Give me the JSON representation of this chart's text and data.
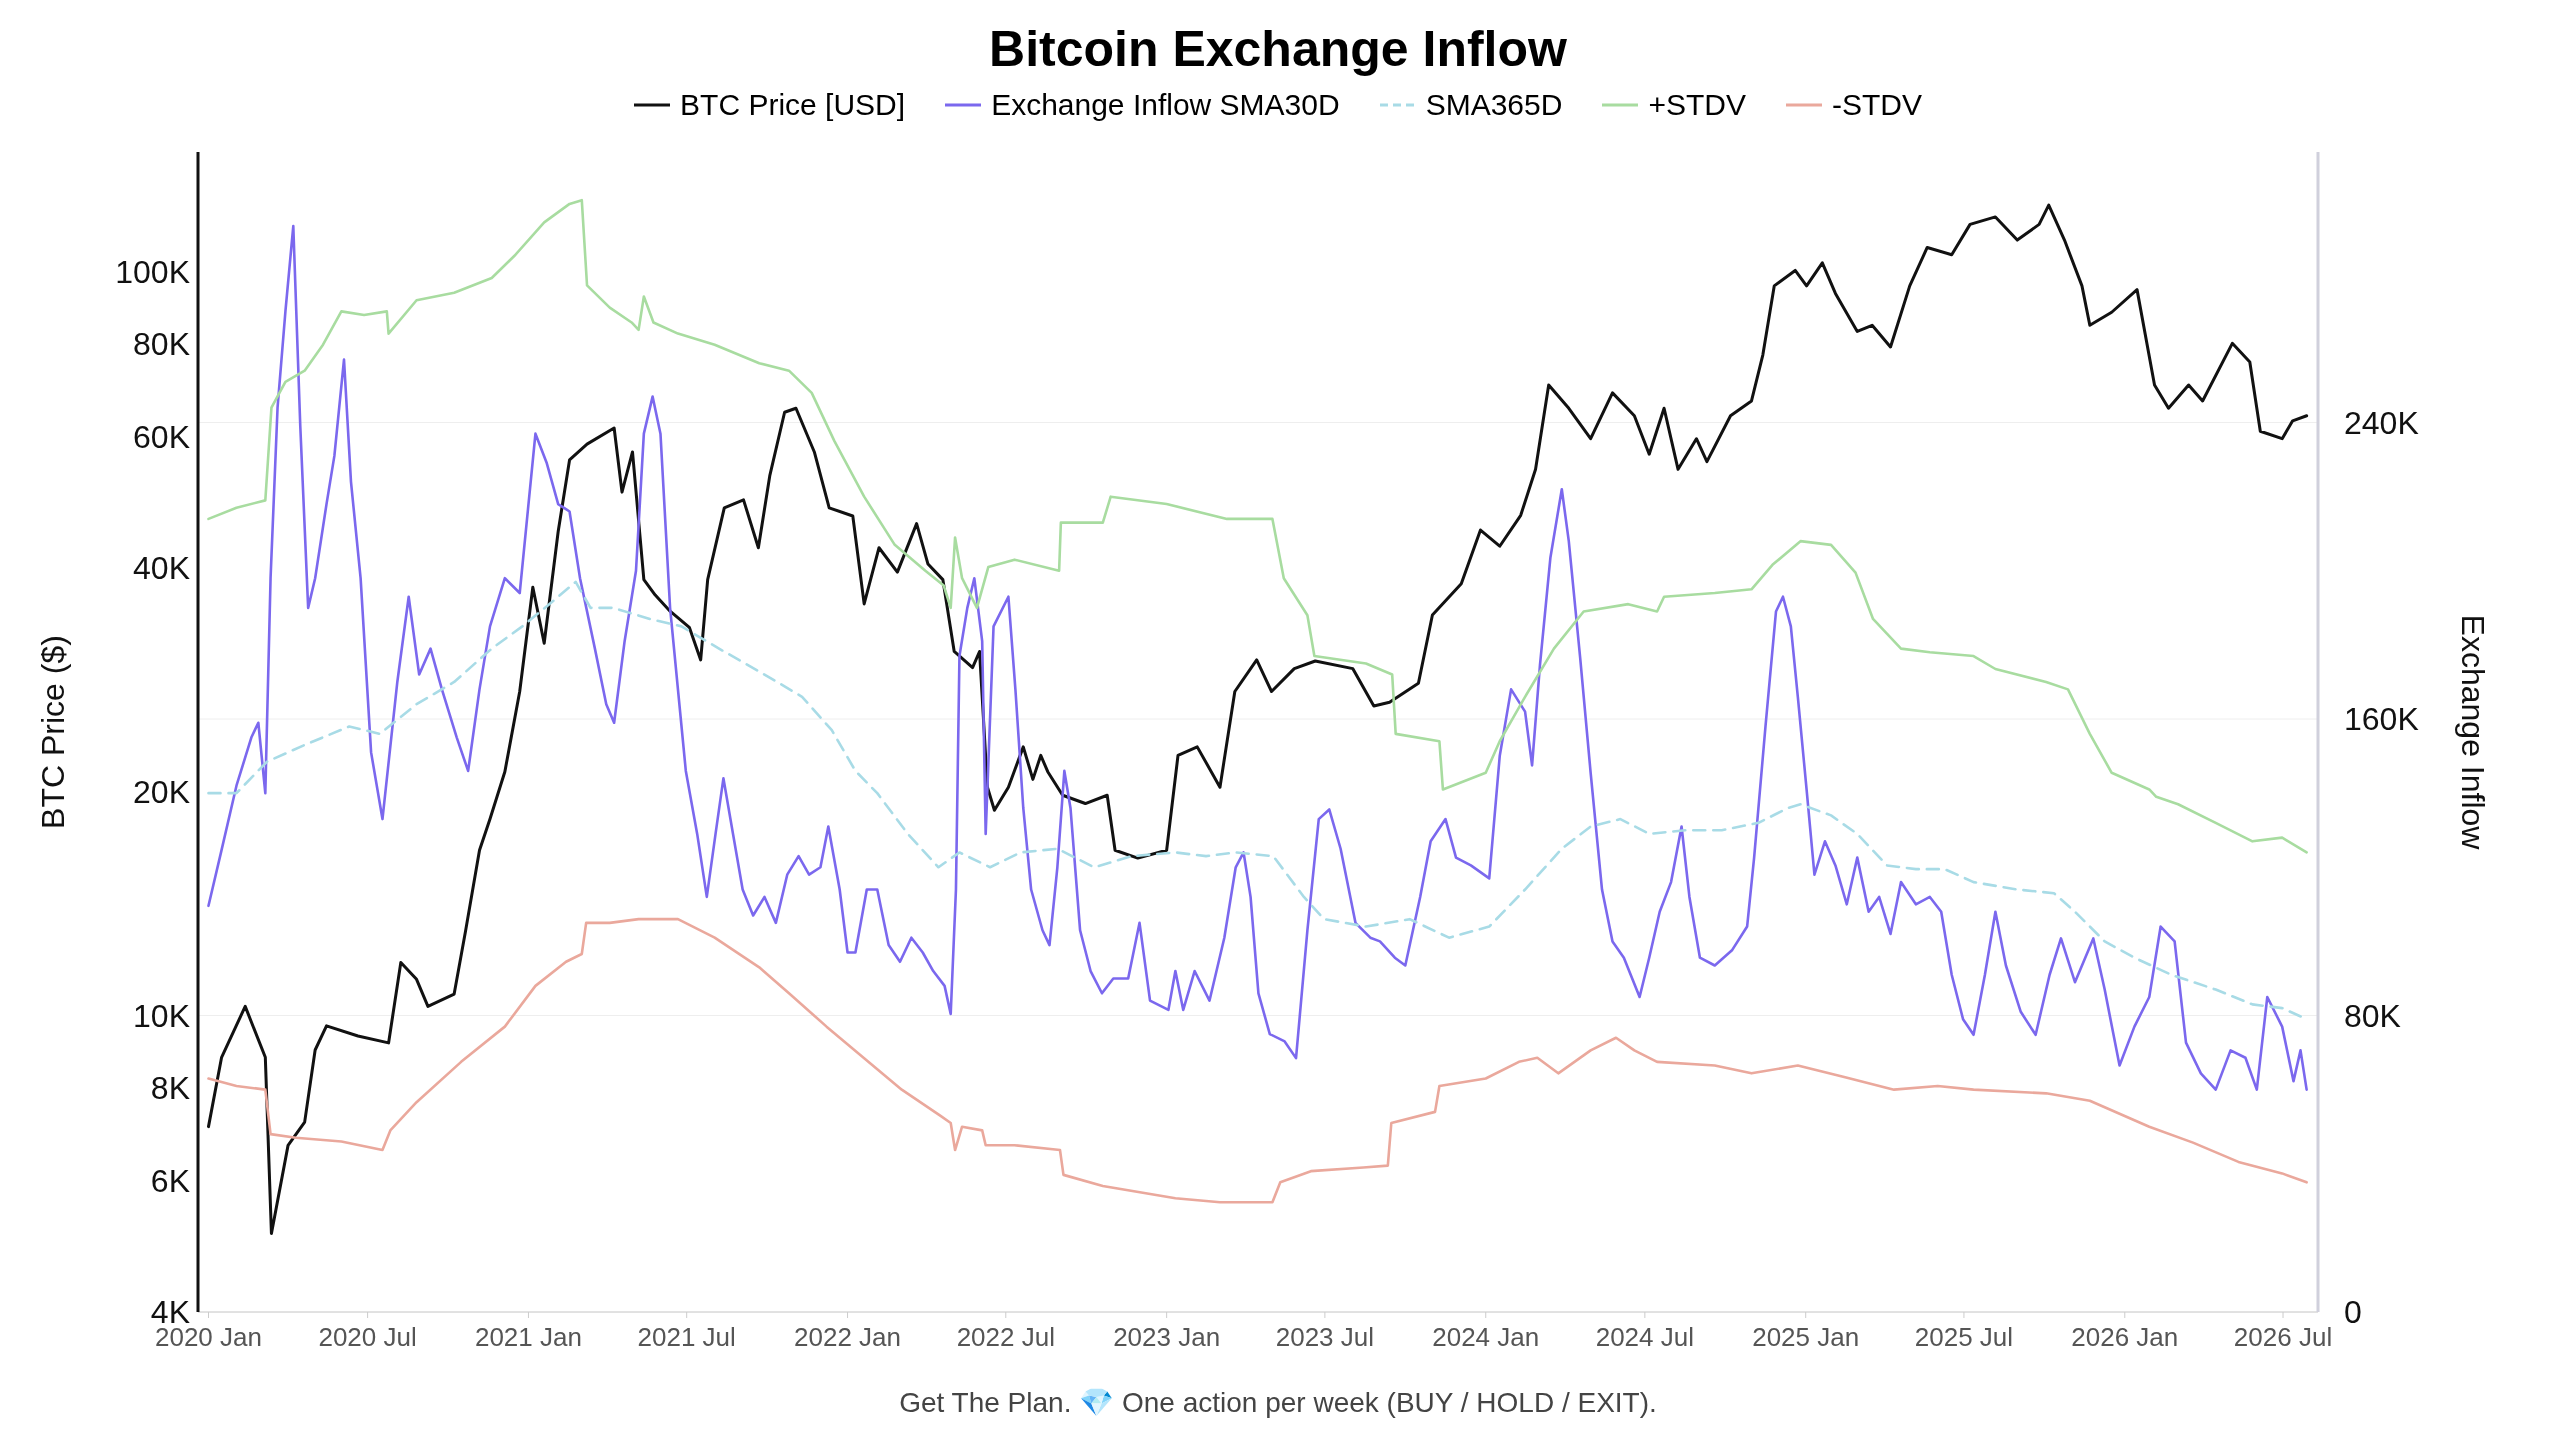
{
  "chart_data": {
    "type": "line",
    "title": "Bitcoin Exchange Inflow",
    "ylabel": "BTC Price ($)",
    "y2label": "Exchange Inflow",
    "legend": "top",
    "grid": "y",
    "log": "y",
    "xlim": [
      "2019-12-20",
      "2026-08-10"
    ],
    "xticks": [
      {
        "value": "2020-01-01",
        "label": "2020 Jan"
      },
      {
        "value": "2020-07-01",
        "label": "2020 Jul"
      },
      {
        "value": "2021-01-01",
        "label": "2021 Jan"
      },
      {
        "value": "2021-07-01",
        "label": "2021 Jul"
      },
      {
        "value": "2022-01-01",
        "label": "2022 Jan"
      },
      {
        "value": "2022-07-01",
        "label": "2022 Jul"
      },
      {
        "value": "2023-01-01",
        "label": "2023 Jan"
      },
      {
        "value": "2023-07-01",
        "label": "2023 Jul"
      },
      {
        "value": "2024-01-01",
        "label": "2024 Jan"
      },
      {
        "value": "2024-07-01",
        "label": "2024 Jul"
      },
      {
        "value": "2025-01-01",
        "label": "2025 Jan"
      },
      {
        "value": "2025-07-01",
        "label": "2025 Jul"
      },
      {
        "value": "2026-01-01",
        "label": "2026 Jan"
      },
      {
        "value": "2026-07-01",
        "label": "2026 Jul"
      }
    ],
    "ylim": [
      4000,
      145000
    ],
    "yticks": [
      {
        "value": 4000,
        "label": "4K"
      },
      {
        "value": 6000,
        "label": "6K"
      },
      {
        "value": 8000,
        "label": "8K"
      },
      {
        "value": 10000,
        "label": "10K"
      },
      {
        "value": 20000,
        "label": "20K"
      },
      {
        "value": 40000,
        "label": "40K"
      },
      {
        "value": 60000,
        "label": "60K"
      },
      {
        "value": 80000,
        "label": "80K"
      },
      {
        "value": 100000,
        "label": "100K"
      }
    ],
    "y2lim": [
      0,
      313000
    ],
    "y2ticks": [
      0,
      {
        "value": 80000,
        "label": "80K"
      },
      {
        "value": 160000,
        "label": "160K"
      },
      {
        "value": 240000,
        "label": "240K"
      }
    ],
    "annotations": [
      "Get The Plan. 💎 One action per week (BUY / HOLD / EXIT)."
    ],
    "series": [
      {
        "name": "BTC Price [USD]",
        "color": "#111111",
        "line_style": "solid",
        "x": [
          "2020-01-01",
          "2020-01-16",
          "2020-02-12",
          "2020-03-06",
          "2020-03-13",
          "2020-04-01",
          "2020-04-20",
          "2020-05-02",
          "2020-05-15",
          "2020-06-20",
          "2020-07-25",
          "2020-08-08",
          "2020-08-26",
          "2020-09-08",
          "2020-10-08",
          "2020-10-21",
          "2020-11-06",
          "2020-11-18",
          "2020-12-05",
          "2020-12-22",
          "2021-01-06",
          "2021-01-19",
          "2021-02-04",
          "2021-02-17",
          "2021-03-09",
          "2021-04-09",
          "2021-04-18",
          "2021-04-30",
          "2021-05-13",
          "2021-05-26",
          "2021-06-12",
          "2021-07-04",
          "2021-07-17",
          "2021-07-25",
          "2021-08-13",
          "2021-09-04",
          "2021-09-21",
          "2021-10-04",
          "2021-10-21",
          "2021-11-03",
          "2021-11-24",
          "2021-12-11",
          "2022-01-07",
          "2022-01-20",
          "2022-02-06",
          "2022-02-27",
          "2022-03-21",
          "2022-04-03",
          "2022-04-20",
          "2022-05-03",
          "2022-05-24",
          "2022-06-01",
          "2022-06-10",
          "2022-06-18",
          "2022-07-04",
          "2022-07-21",
          "2022-08-01",
          "2022-08-10",
          "2022-08-18",
          "2022-09-04",
          "2022-09-30",
          "2022-10-25",
          "2022-11-03",
          "2022-11-29",
          "2023-01-01",
          "2023-01-14",
          "2023-02-05",
          "2023-03-03",
          "2023-03-20",
          "2023-04-14",
          "2023-05-01",
          "2023-05-27",
          "2023-06-20",
          "2023-08-02",
          "2023-08-26",
          "2023-09-13",
          "2023-10-16",
          "2023-11-01",
          "2023-12-04",
          "2023-12-26",
          "2024-01-17",
          "2024-02-10",
          "2024-02-27",
          "2024-03-13",
          "2024-04-05",
          "2024-04-30",
          "2024-05-25",
          "2024-06-19",
          "2024-07-06",
          "2024-07-23",
          "2024-08-08",
          "2024-08-29",
          "2024-09-10",
          "2024-10-07",
          "2024-10-31",
          "2024-11-13",
          "2024-11-26",
          "2024-12-20",
          "2025-01-02",
          "2025-01-20",
          "2025-02-04",
          "2025-03-01",
          "2025-03-18",
          "2025-04-08",
          "2025-04-30",
          "2025-05-20",
          "2025-06-17",
          "2025-07-08",
          "2025-08-06",
          "2025-08-31",
          "2025-09-25",
          "2025-10-06",
          "2025-10-24",
          "2025-11-13",
          "2025-11-22",
          "2025-12-17",
          "2026-01-15",
          "2026-02-04",
          "2026-02-20",
          "2026-03-15",
          "2026-03-31",
          "2026-05-04",
          "2026-05-24",
          "2026-06-05",
          "2026-06-30",
          "2026-07-12",
          "2026-07-28"
        ],
        "values": [
          7100,
          8800,
          10300,
          8800,
          5100,
          6700,
          7200,
          9000,
          9700,
          9400,
          9200,
          11800,
          11200,
          10300,
          10700,
          13000,
          16700,
          18400,
          21300,
          27300,
          37700,
          31700,
          44800,
          55900,
          58700,
          61700,
          50600,
          57300,
          38600,
          36800,
          35000,
          33300,
          30100,
          38600,
          48200,
          49400,
          42600,
          53200,
          64800,
          65600,
          57300,
          48200,
          47000,
          35800,
          42600,
          39500,
          45900,
          40500,
          38600,
          30900,
          29400,
          30900,
          20300,
          18900,
          20300,
          23000,
          20800,
          22400,
          21300,
          19800,
          19300,
          19800,
          16700,
          16300,
          16700,
          22400,
          23000,
          20300,
          27300,
          30100,
          27300,
          29300,
          30000,
          29300,
          26100,
          26400,
          28000,
          34600,
          38100,
          45000,
          42800,
          47100,
          54300,
          70500,
          65600,
          59700,
          68800,
          64100,
          56900,
          65600,
          54300,
          59700,
          55600,
          64100,
          67100,
          77400,
          95800,
          100500,
          95800,
          102900,
          93600,
          83200,
          84800,
          79300,
          95800,
          107900,
          105500,
          115900,
          118600,
          110400,
          115900,
          123000,
          110400,
          95800,
          84800,
          88300,
          94700,
          70500,
          65600,
          70500,
          67100,
          80200,
          75700,
          61100,
          59700,
          63100,
          64100
        ]
      },
      {
        "name": "Exchange Inflow SMA30D",
        "color": "#7b68ee",
        "line_style": "solid",
        "axis": "y2",
        "x": [
          "2020-01-01",
          "2020-01-16",
          "2020-02-02",
          "2020-02-19",
          "2020-02-27",
          "2020-03-06",
          "2020-03-12",
          "2020-03-20",
          "2020-03-29",
          "2020-04-07",
          "2020-04-15",
          "2020-04-24",
          "2020-05-02",
          "2020-05-15",
          "2020-05-24",
          "2020-06-04",
          "2020-06-12",
          "2020-06-23",
          "2020-07-05",
          "2020-07-18",
          "2020-08-04",
          "2020-08-17",
          "2020-08-29",
          "2020-09-11",
          "2020-09-24",
          "2020-10-11",
          "2020-10-24",
          "2020-11-06",
          "2020-11-18",
          "2020-12-05",
          "2020-12-22",
          "2021-01-09",
          "2021-01-22",
          "2021-02-04",
          "2021-02-17",
          "2021-03-01",
          "2021-03-18",
          "2021-03-31",
          "2021-04-09",
          "2021-04-21",
          "2021-05-04",
          "2021-05-13",
          "2021-05-23",
          "2021-06-01",
          "2021-06-12",
          "2021-06-30",
          "2021-07-13",
          "2021-07-24",
          "2021-08-03",
          "2021-08-12",
          "2021-08-23",
          "2021-09-03",
          "2021-09-15",
          "2021-09-28",
          "2021-10-11",
          "2021-10-24",
          "2021-11-06",
          "2021-11-18",
          "2021-12-01",
          "2021-12-10",
          "2021-12-23",
          "2022-01-01",
          "2022-01-10",
          "2022-01-23",
          "2022-02-04",
          "2022-02-17",
          "2022-03-02",
          "2022-03-15",
          "2022-03-28",
          "2022-04-09",
          "2022-04-22",
          "2022-04-29",
          "2022-05-05",
          "2022-05-09",
          "2022-05-18",
          "2022-05-26",
          "2022-06-04",
          "2022-06-08",
          "2022-06-17",
          "2022-07-04",
          "2022-07-12",
          "2022-07-21",
          "2022-07-30",
          "2022-08-12",
          "2022-08-20",
          "2022-08-29",
          "2022-09-06",
          "2022-09-13",
          "2022-09-24",
          "2022-10-06",
          "2022-10-19",
          "2022-11-01",
          "2022-11-18",
          "2022-12-01",
          "2022-12-13",
          "2023-01-03",
          "2023-01-11",
          "2023-01-20",
          "2023-02-02",
          "2023-02-19",
          "2023-03-08",
          "2023-03-21",
          "2023-03-30",
          "2023-04-07",
          "2023-04-16",
          "2023-04-29",
          "2023-05-16",
          "2023-05-29",
          "2023-06-11",
          "2023-06-24",
          "2023-07-06",
          "2023-07-19",
          "2023-08-05",
          "2023-08-22",
          "2023-09-02",
          "2023-09-19",
          "2023-10-01",
          "2023-10-18",
          "2023-10-30",
          "2023-11-16",
          "2023-11-28",
          "2023-12-15",
          "2024-01-05",
          "2024-01-17",
          "2024-01-30",
          "2024-02-15",
          "2024-02-23",
          "2024-03-03",
          "2024-03-15",
          "2024-03-28",
          "2024-04-05",
          "2024-04-18",
          "2024-04-30",
          "2024-05-13",
          "2024-05-25",
          "2024-06-07",
          "2024-06-25",
          "2024-07-06",
          "2024-07-18",
          "2024-07-31",
          "2024-08-12",
          "2024-08-21",
          "2024-09-02",
          "2024-09-19",
          "2024-10-09",
          "2024-10-26",
          "2024-11-03",
          "2024-11-16",
          "2024-11-28",
          "2024-12-06",
          "2024-12-15",
          "2024-12-23",
          "2025-01-02",
          "2025-01-11",
          "2025-01-23",
          "2025-02-04",
          "2025-02-17",
          "2025-03-01",
          "2025-03-14",
          "2025-03-26",
          "2025-04-08",
          "2025-04-20",
          "2025-05-07",
          "2025-05-23",
          "2025-06-05",
          "2025-06-17",
          "2025-06-30",
          "2025-07-12",
          "2025-07-25",
          "2025-08-06",
          "2025-08-18",
          "2025-09-04",
          "2025-09-21",
          "2025-10-07",
          "2025-10-20",
          "2025-11-05",
          "2025-11-26",
          "2025-12-09",
          "2025-12-26",
          "2026-01-12",
          "2026-01-29",
          "2026-02-11",
          "2026-02-27",
          "2026-03-12",
          "2026-03-29",
          "2026-04-15",
          "2026-05-02",
          "2026-05-19",
          "2026-06-01",
          "2026-06-13",
          "2026-06-30",
          "2026-07-13",
          "2026-07-21",
          "2026-07-28"
        ],
        "values": [
          109600,
          124700,
          142000,
          155000,
          159000,
          140000,
          198000,
          244000,
          270000,
          293000,
          239000,
          190000,
          198000,
          218000,
          231000,
          257000,
          224000,
          198000,
          151000,
          133000,
          170000,
          193000,
          172000,
          179000,
          168000,
          155000,
          146000,
          168000,
          185000,
          198000,
          194000,
          237000,
          229000,
          218000,
          216000,
          198000,
          179000,
          164000,
          159000,
          181000,
          200000,
          237000,
          247000,
          237000,
          190000,
          146000,
          129000,
          112000,
          129000,
          144000,
          129000,
          114000,
          107000,
          112000,
          105000,
          118000,
          123000,
          118000,
          120000,
          131000,
          114000,
          97000,
          97000,
          114000,
          114000,
          99000,
          94500,
          101000,
          97000,
          92000,
          88000,
          80400,
          114000,
          177000,
          190000,
          198000,
          181000,
          129000,
          185000,
          193000,
          168000,
          136000,
          114000,
          103000,
          99000,
          120000,
          146000,
          136000,
          103000,
          92000,
          86000,
          90000,
          90000,
          105000,
          84000,
          81500,
          92000,
          81500,
          92000,
          84000,
          101000,
          120000,
          124000,
          112000,
          86000,
          75000,
          73000,
          68500,
          103000,
          133000,
          135600,
          125000,
          105000,
          101000,
          100000,
          95600,
          93500,
          112000,
          127000,
          133000,
          122600,
          120500,
          117000,
          150000,
          168000,
          162000,
          147500,
          174500,
          203600,
          222000,
          208000,
          176600,
          145500,
          114000,
          100000,
          95600,
          85000,
          95600,
          108000,
          116000,
          131000,
          112000,
          95600,
          93500,
          97700,
          104000,
          122600,
          158000,
          189000,
          193000,
          185000,
          166000,
          141000,
          118000,
          127000,
          120500,
          110000,
          122600,
          108000,
          112000,
          102000,
          116000,
          110000,
          112000,
          108000,
          91000,
          79000,
          74800,
          91000,
          108000,
          93500,
          81000,
          74800,
          91000,
          100800,
          89000,
          100800,
          87000,
          66500,
          77000,
          85000,
          104000,
          100000,
          72700,
          64400,
          60000,
          70600,
          68600,
          60000,
          85000,
          77000,
          62300,
          70600,
          60000
        ]
      },
      {
        "name": "SMA365D",
        "color": "#a8dbe6",
        "line_style": "dashed",
        "axis": "y2",
        "x": [
          "2020-01-01",
          "2020-02-02",
          "2020-03-08",
          "2020-04-20",
          "2020-06-10",
          "2020-07-15",
          "2020-08-26",
          "2020-10-08",
          "2020-11-20",
          "2020-12-25",
          "2021-01-30",
          "2021-02-24",
          "2021-03-13",
          "2021-04-08",
          "2021-05-20",
          "2021-06-25",
          "2021-08-07",
          "2021-09-28",
          "2021-11-10",
          "2021-12-14",
          "2022-01-10",
          "2022-02-04",
          "2022-03-11",
          "2022-04-15",
          "2022-05-09",
          "2022-06-13",
          "2022-07-18",
          "2022-08-29",
          "2022-10-10",
          "2022-11-22",
          "2023-01-11",
          "2023-02-15",
          "2023-03-21",
          "2023-05-03",
          "2023-06-07",
          "2023-06-30",
          "2023-08-17",
          "2023-10-06",
          "2023-11-20",
          "2024-01-05",
          "2024-02-15",
          "2024-03-28",
          "2024-04-30",
          "2024-06-03",
          "2024-07-06",
          "2024-08-16",
          "2024-09-27",
          "2024-11-08",
          "2024-12-12",
          "2024-12-26",
          "2025-01-30",
          "2025-03-01",
          "2025-04-04",
          "2025-05-07",
          "2025-06-09",
          "2025-07-12",
          "2025-08-31",
          "2025-10-12",
          "2025-11-05",
          "2025-12-09",
          "2026-01-12",
          "2026-02-23",
          "2026-04-15",
          "2026-05-27",
          "2026-06-30",
          "2026-07-28"
        ],
        "values": [
          140000,
          140000,
          148500,
          153000,
          158000,
          156000,
          164000,
          170000,
          179000,
          185000,
          192000,
          197000,
          190000,
          190000,
          187000,
          185000,
          179000,
          172000,
          166000,
          157000,
          146000,
          140000,
          129000,
          120000,
          124000,
          120000,
          124000,
          125000,
          120000,
          123000,
          124000,
          123000,
          124000,
          123000,
          112000,
          106000,
          104000,
          106000,
          101000,
          104000,
          114000,
          125000,
          131000,
          133000,
          129000,
          130000,
          130000,
          132000,
          136000,
          137000,
          134000,
          129000,
          120500,
          119500,
          119500,
          116000,
          114000,
          113000,
          108000,
          100000,
          95600,
          91000,
          87000,
          83000,
          82000,
          79000
        ]
      },
      {
        "name": "+STDV",
        "color": "#a8dca0",
        "line_style": "solid",
        "axis": "y2",
        "x": [
          "2020-01-01",
          "2020-02-02",
          "2020-03-06",
          "2020-03-13",
          "2020-03-29",
          "2020-04-20",
          "2020-05-11",
          "2020-06-01",
          "2020-06-27",
          "2020-07-23",
          "2020-07-25",
          "2020-08-26",
          "2020-10-08",
          "2020-11-20",
          "2020-12-16",
          "2021-01-19",
          "2021-02-17",
          "2021-03-03",
          "2021-03-09",
          "2021-04-04",
          "2021-04-29",
          "2021-05-07",
          "2021-05-13",
          "2021-05-24",
          "2021-06-21",
          "2021-08-02",
          "2021-09-22",
          "2021-10-26",
          "2021-11-21",
          "2021-12-17",
          "2022-01-20",
          "2022-02-24",
          "2022-03-31",
          "2022-04-21",
          "2022-04-29",
          "2022-05-04",
          "2022-05-12",
          "2022-05-29",
          "2022-06-11",
          "2022-07-11",
          "2022-08-31",
          "2022-09-02",
          "2022-10-20",
          "2022-10-29",
          "2023-01-01",
          "2023-03-11",
          "2023-05-02",
          "2023-05-15",
          "2023-06-11",
          "2023-06-19",
          "2023-08-17",
          "2023-09-16",
          "2023-09-20",
          "2023-11-09",
          "2023-11-13",
          "2024-01-01",
          "2024-01-17",
          "2024-02-15",
          "2024-03-19",
          "2024-04-22",
          "2024-06-12",
          "2024-07-15",
          "2024-07-23",
          "2024-09-19",
          "2024-10-31",
          "2024-11-24",
          "2024-12-26",
          "2025-01-30",
          "2025-02-27",
          "2025-03-19",
          "2025-04-20",
          "2025-05-23",
          "2025-07-12",
          "2025-08-06",
          "2025-10-03",
          "2025-10-28",
          "2025-11-22",
          "2025-12-17",
          "2026-01-29",
          "2026-02-06",
          "2026-03-03",
          "2026-04-15",
          "2026-05-27",
          "2026-06-30",
          "2026-07-28"
        ],
        "values": [
          214000,
          217000,
          219000,
          244000,
          251000,
          254000,
          261000,
          270000,
          269000,
          270000,
          264000,
          273000,
          275000,
          279000,
          285000,
          294000,
          299000,
          300000,
          277000,
          271000,
          267000,
          265000,
          274000,
          267000,
          264000,
          261000,
          256000,
          254000,
          248000,
          235000,
          220000,
          207000,
          200000,
          196000,
          190000,
          209000,
          198000,
          190000,
          201000,
          203000,
          200000,
          213000,
          213000,
          220000,
          218000,
          214000,
          214000,
          198000,
          188000,
          177000,
          175000,
          172000,
          156000,
          154000,
          141000,
          145500,
          154000,
          166000,
          179000,
          189000,
          191000,
          189000,
          193000,
          194000,
          195000,
          201600,
          208000,
          207000,
          199500,
          187000,
          179000,
          178000,
          177000,
          173500,
          170000,
          168000,
          156000,
          145500,
          141000,
          139000,
          137000,
          132000,
          127000,
          128000,
          124000
        ]
      },
      {
        "name": "-STDV",
        "color": "#eaa89c",
        "line_style": "solid",
        "axis": "y2",
        "x": [
          "2020-01-01",
          "2020-02-02",
          "2020-03-06",
          "2020-03-12",
          "2020-04-10",
          "2020-06-01",
          "2020-07-18",
          "2020-07-27",
          "2020-08-26",
          "2020-10-16",
          "2020-12-05",
          "2021-01-09",
          "2021-02-13",
          "2021-03-03",
          "2021-03-08",
          "2021-04-04",
          "2021-05-07",
          "2021-06-21",
          "2021-08-02",
          "2021-09-22",
          "2021-10-26",
          "2021-12-08",
          "2022-01-20",
          "2022-03-04",
          "2022-04-17",
          "2022-04-29",
          "2022-05-04",
          "2022-05-12",
          "2022-06-04",
          "2022-06-08",
          "2022-07-11",
          "2022-09-01",
          "2022-09-05",
          "2022-10-20",
          "2023-01-11",
          "2023-03-03",
          "2023-05-02",
          "2023-05-11",
          "2023-06-15",
          "2023-08-14",
          "2023-09-11",
          "2023-09-15",
          "2023-11-04",
          "2023-11-09",
          "2024-01-01",
          "2024-02-08",
          "2024-02-29",
          "2024-03-24",
          "2024-04-30",
          "2024-05-29",
          "2024-06-19",
          "2024-07-15",
          "2024-09-19",
          "2024-10-31",
          "2024-12-23",
          "2025-02-14",
          "2025-04-12",
          "2025-06-01",
          "2025-07-12",
          "2025-10-03",
          "2025-11-22",
          "2026-01-29",
          "2026-03-20",
          "2026-05-11",
          "2026-06-30",
          "2026-07-28"
        ],
        "values": [
          63000,
          61000,
          60000,
          48000,
          47000,
          46000,
          43700,
          49000,
          56600,
          67500,
          77000,
          88000,
          94500,
          96600,
          105000,
          105000,
          106000,
          106000,
          101000,
          93000,
          86000,
          77000,
          68500,
          60000,
          53000,
          51000,
          43700,
          50000,
          49000,
          45000,
          45000,
          43700,
          37000,
          34000,
          30700,
          29600,
          29600,
          35000,
          38000,
          39000,
          39500,
          51000,
          54000,
          61000,
          63000,
          67500,
          68600,
          64400,
          70600,
          74000,
          70600,
          67500,
          66500,
          64400,
          66500,
          63400,
          60000,
          61000,
          60000,
          59000,
          57000,
          50000,
          45700,
          40500,
          37400,
          35000
        ]
      }
    ]
  }
}
